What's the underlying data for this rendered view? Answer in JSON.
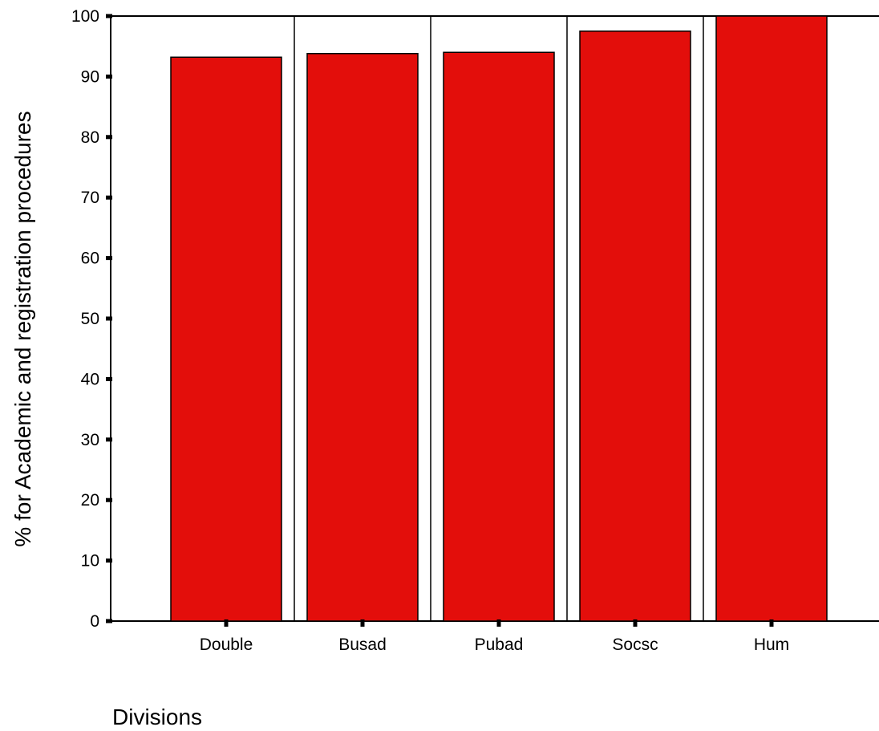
{
  "chart_data": {
    "type": "bar",
    "categories": [
      "Double",
      "Busad",
      "Pubad",
      "Socsc",
      "Hum"
    ],
    "values": [
      93.2,
      93.8,
      94.0,
      97.5,
      100
    ],
    "xlabel": "Divisions",
    "ylabel": "% for Academic and registration procedures",
    "ylim": [
      0,
      100
    ],
    "yticks": [
      0,
      10,
      20,
      30,
      40,
      50,
      60,
      70,
      80,
      90,
      100
    ],
    "bar_color": "#e30e0b",
    "grid": false,
    "legend": "none"
  }
}
